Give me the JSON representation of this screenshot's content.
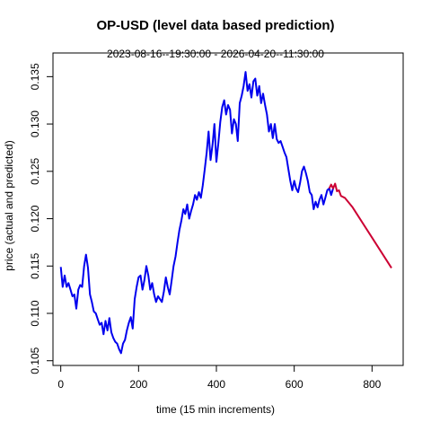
{
  "chart_data": {
    "type": "line",
    "title": "OP-USD (level data based prediction)",
    "subtitle": "2023-08-16--19:30:00  -  2026-04-20--11:30:00",
    "xlabel": "time (15 min increments)",
    "ylabel": "price (actual and predicted)",
    "xlim": [
      -20,
      880
    ],
    "ylim": [
      0.1045,
      0.1375
    ],
    "x_ticks": [
      0,
      200,
      400,
      600,
      800
    ],
    "y_ticks": [
      0.105,
      0.11,
      0.115,
      0.12,
      0.125,
      0.13,
      0.135
    ],
    "y_tick_labels": [
      "0.105",
      "0.110",
      "0.115",
      "0.120",
      "0.125",
      "0.130",
      "0.135"
    ],
    "grid": false,
    "series": [
      {
        "color": "#0000ee",
        "x": [
          0,
          5,
          10,
          15,
          20,
          25,
          30,
          35,
          40,
          45,
          50,
          55,
          60,
          65,
          70,
          75,
          80,
          85,
          90,
          95,
          100,
          105,
          110,
          115,
          120,
          125,
          130,
          135,
          140,
          145,
          150,
          155,
          160,
          165,
          170,
          175,
          180,
          185,
          190,
          195,
          200,
          205,
          210,
          215,
          220,
          225,
          230,
          235,
          240,
          245,
          250,
          255,
          260,
          265,
          270,
          275,
          280,
          285,
          290,
          295,
          300,
          305,
          310,
          315,
          320,
          325,
          330,
          335,
          340,
          345,
          350,
          355,
          360,
          365,
          370,
          375,
          380,
          385,
          390,
          395,
          400,
          405,
          410,
          415,
          420,
          425,
          430,
          435,
          440,
          445,
          450,
          455,
          460,
          465,
          470,
          475,
          480,
          485,
          490,
          495,
          500,
          505,
          510,
          515,
          520,
          525,
          530,
          535,
          540,
          545,
          550,
          555,
          560,
          565,
          570,
          575,
          580,
          585,
          590,
          595,
          600,
          605,
          610,
          615,
          620,
          625,
          630,
          635,
          640,
          645,
          650,
          655,
          660,
          665,
          670,
          675,
          680,
          685,
          690,
          695,
          700
        ],
        "y": [
          0.1149,
          0.1128,
          0.114,
          0.1128,
          0.1132,
          0.1125,
          0.1118,
          0.112,
          0.1105,
          0.1125,
          0.113,
          0.1128,
          0.115,
          0.1162,
          0.1148,
          0.112,
          0.1112,
          0.1102,
          0.11,
          0.1094,
          0.1088,
          0.109,
          0.1078,
          0.1092,
          0.1082,
          0.1095,
          0.108,
          0.1074,
          0.107,
          0.1068,
          0.1062,
          0.1058,
          0.1068,
          0.1072,
          0.1082,
          0.109,
          0.1096,
          0.1084,
          0.1115,
          0.1128,
          0.1138,
          0.114,
          0.1125,
          0.1135,
          0.115,
          0.114,
          0.1125,
          0.1132,
          0.112,
          0.1112,
          0.1118,
          0.1115,
          0.1112,
          0.1123,
          0.1138,
          0.1128,
          0.112,
          0.1135,
          0.115,
          0.116,
          0.1175,
          0.1188,
          0.1198,
          0.121,
          0.1205,
          0.1215,
          0.12,
          0.1208,
          0.1215,
          0.1225,
          0.122,
          0.1228,
          0.1222,
          0.1235,
          0.1252,
          0.127,
          0.1292,
          0.1262,
          0.1278,
          0.13,
          0.126,
          0.128,
          0.1302,
          0.1318,
          0.1325,
          0.131,
          0.132,
          0.1315,
          0.129,
          0.1305,
          0.13,
          0.1282,
          0.1322,
          0.133,
          0.134,
          0.1355,
          0.1335,
          0.1342,
          0.1328,
          0.1345,
          0.1348,
          0.133,
          0.134,
          0.1322,
          0.1332,
          0.132,
          0.131,
          0.1292,
          0.13,
          0.1285,
          0.13,
          0.1284,
          0.128,
          0.1282,
          0.1276,
          0.127,
          0.1265,
          0.1252,
          0.124,
          0.123,
          0.124,
          0.1232,
          0.1228,
          0.1238,
          0.125,
          0.1255,
          0.1248,
          0.124,
          0.1228,
          0.1225,
          0.121,
          0.1218,
          0.1212,
          0.122,
          0.1225,
          0.1215,
          0.1222,
          0.123,
          0.1232,
          0.1225,
          0.1232
        ]
      },
      {
        "color": "#cc0033",
        "x": [
          690,
          695,
          700,
          705,
          710,
          715,
          720,
          730,
          750,
          800,
          850
        ],
        "y": [
          0.1232,
          0.1236,
          0.1232,
          0.1237,
          0.1229,
          0.123,
          0.1224,
          0.1222,
          0.1212,
          0.118,
          0.1148
        ]
      }
    ]
  }
}
